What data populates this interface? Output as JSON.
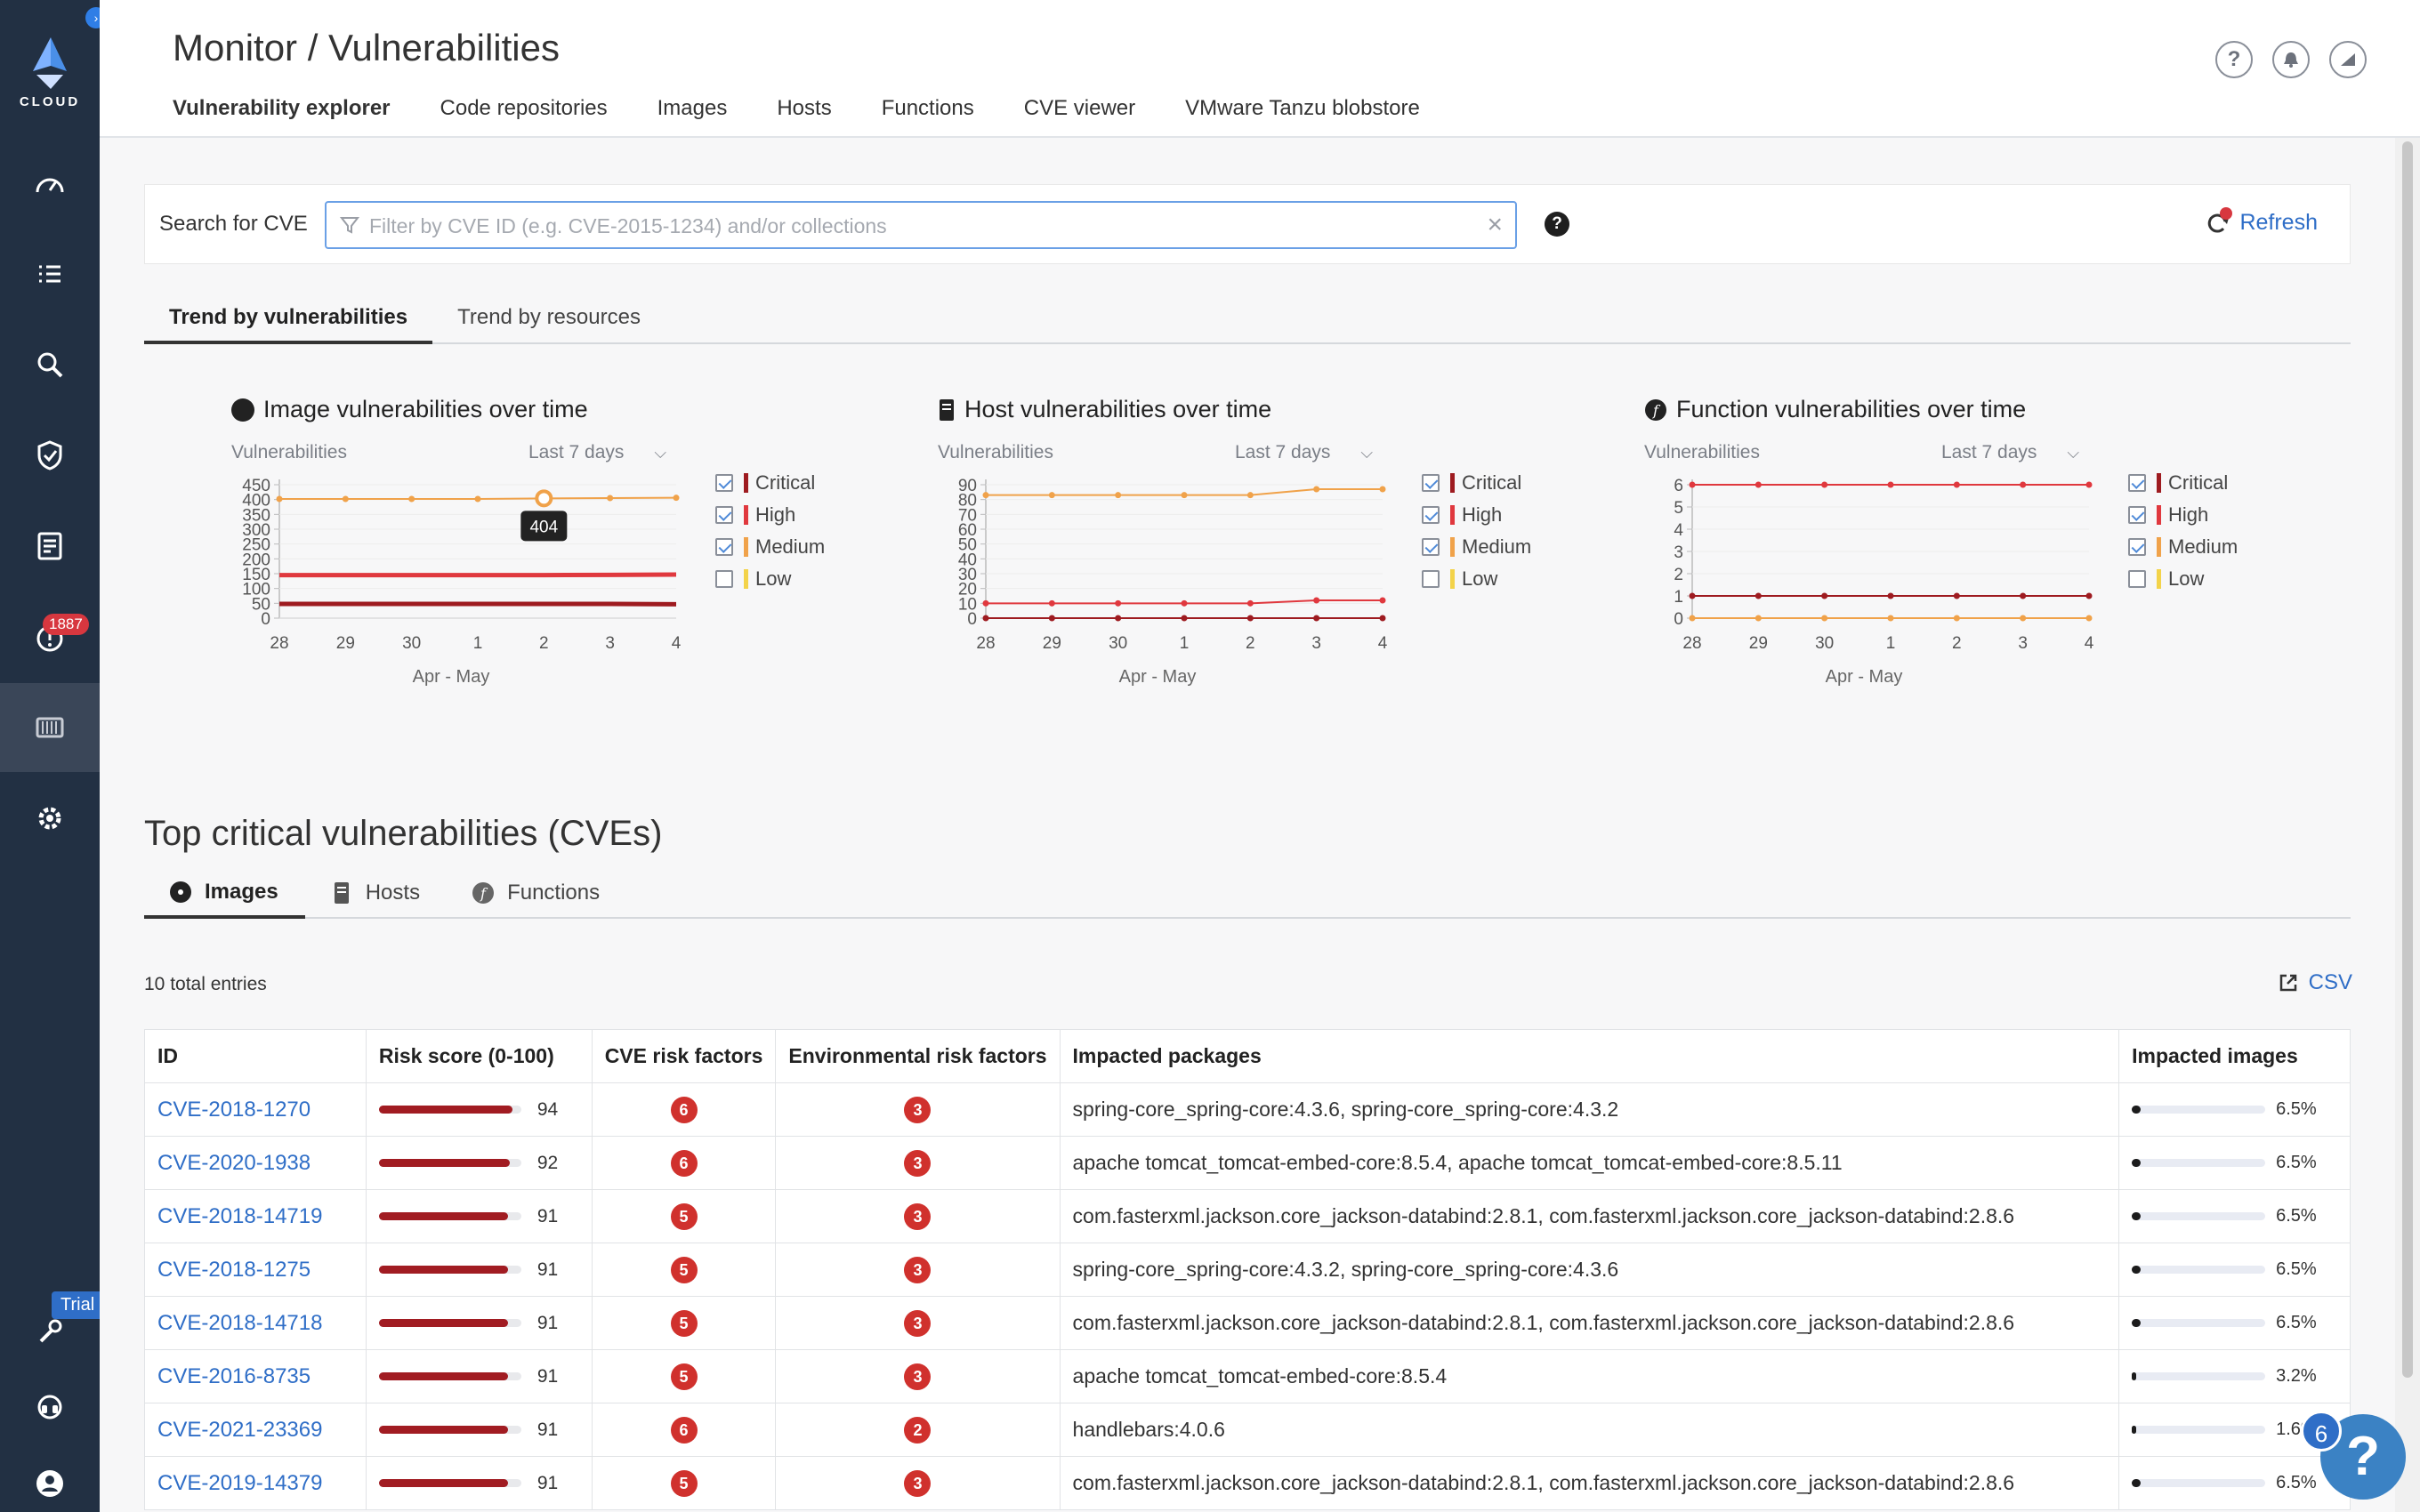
{
  "sidebar": {
    "logo_text": "CLOUD",
    "alerts_badge": "1887",
    "trial_badge": "Trial",
    "items": [
      "dashboard",
      "tasks",
      "search",
      "shield",
      "reports",
      "alerts",
      "containers",
      "settings",
      "tools",
      "support",
      "user"
    ]
  },
  "header": {
    "title": "Monitor / Vulnerabilities",
    "tabs": [
      {
        "label": "Vulnerability explorer",
        "active": true
      },
      {
        "label": "Code repositories"
      },
      {
        "label": "Images"
      },
      {
        "label": "Hosts"
      },
      {
        "label": "Functions"
      },
      {
        "label": "CVE viewer"
      },
      {
        "label": "VMware Tanzu blobstore"
      }
    ],
    "icons": [
      "help-icon",
      "bell-icon",
      "profile-icon"
    ],
    "help_glyph": "?"
  },
  "search": {
    "label": "Search for CVE",
    "placeholder": "Filter by CVE ID (e.g. CVE-2015-1234) and/or collections",
    "value": "",
    "refresh_label": "Refresh"
  },
  "trend_tabs": [
    {
      "label": "Trend by vulnerabilities",
      "active": true
    },
    {
      "label": "Trend by resources"
    }
  ],
  "legend": [
    "Critical",
    "High",
    "Medium",
    "Low"
  ],
  "legend_checked": [
    true,
    true,
    true,
    false
  ],
  "colors": {
    "critical": "#9e1b20",
    "high": "#e0383e",
    "medium": "#f0a24a",
    "low": "#f3d34a",
    "accent": "#2f7ee6",
    "sidebar": "#223043"
  },
  "chart_data": [
    {
      "type": "line",
      "title": "Image vulnerabilities over time",
      "ylabel": "Vulnerabilities",
      "range_label": "Last 7 days",
      "xlabel": "Apr - May",
      "x": [
        "28",
        "29",
        "30",
        "1",
        "2",
        "3",
        "4"
      ],
      "yticks": [
        0,
        50,
        100,
        150,
        200,
        250,
        300,
        350,
        400,
        450
      ],
      "ylim": [
        0,
        450
      ],
      "series": [
        {
          "name": "Critical",
          "values": [
            48,
            48,
            48,
            48,
            48,
            48,
            47
          ]
        },
        {
          "name": "High",
          "values": [
            145,
            145,
            145,
            145,
            145,
            146,
            147
          ]
        },
        {
          "name": "Medium",
          "values": [
            402,
            402,
            402,
            402,
            404,
            405,
            406
          ]
        }
      ],
      "tooltip": {
        "index": 4,
        "value": "404"
      }
    },
    {
      "type": "line",
      "title": "Host vulnerabilities over time",
      "ylabel": "Vulnerabilities",
      "range_label": "Last 7 days",
      "xlabel": "Apr - May",
      "x": [
        "28",
        "29",
        "30",
        "1",
        "2",
        "3",
        "4"
      ],
      "yticks": [
        0,
        10,
        20,
        30,
        40,
        50,
        60,
        70,
        80,
        90
      ],
      "ylim": [
        0,
        90
      ],
      "series": [
        {
          "name": "Critical",
          "values": [
            0,
            0,
            0,
            0,
            0,
            0,
            0
          ]
        },
        {
          "name": "High",
          "values": [
            10,
            10,
            10,
            10,
            10,
            12,
            12
          ]
        },
        {
          "name": "Medium",
          "values": [
            83,
            83,
            83,
            83,
            83,
            87,
            87
          ]
        }
      ]
    },
    {
      "type": "line",
      "title": "Function vulnerabilities over time",
      "ylabel": "Vulnerabilities",
      "range_label": "Last 7 days",
      "xlabel": "Apr - May",
      "x": [
        "28",
        "29",
        "30",
        "1",
        "2",
        "3",
        "4"
      ],
      "yticks": [
        0,
        1,
        2,
        3,
        4,
        5,
        6
      ],
      "ylim": [
        0,
        6
      ],
      "series": [
        {
          "name": "Critical",
          "values": [
            1,
            1,
            1,
            1,
            1,
            1,
            1
          ]
        },
        {
          "name": "High",
          "values": [
            6,
            6,
            6,
            6,
            6,
            6,
            6
          ]
        },
        {
          "name": "Medium",
          "values": [
            0,
            0,
            0,
            0,
            0,
            0,
            0
          ]
        }
      ]
    }
  ],
  "top": {
    "title": "Top critical vulnerabilities (CVEs)",
    "tabs": [
      {
        "label": "Images",
        "active": true
      },
      {
        "label": "Hosts"
      },
      {
        "label": "Functions"
      }
    ],
    "total_entries": "10 total entries",
    "csv_label": "CSV",
    "columns": [
      "ID",
      "Risk score (0-100)",
      "CVE risk factors",
      "Environmental risk factors",
      "Impacted packages",
      "Impacted images"
    ],
    "rows": [
      {
        "id": "CVE-2018-1270",
        "risk": 94,
        "cve_factors": "6",
        "env_factors": "3",
        "packages": "spring-core_spring-core:4.3.6, spring-core_spring-core:4.3.2",
        "impacted": "6.5%",
        "impacted_pct": 6.5
      },
      {
        "id": "CVE-2020-1938",
        "risk": 92,
        "cve_factors": "6",
        "env_factors": "3",
        "packages": "apache tomcat_tomcat-embed-core:8.5.4, apache tomcat_tomcat-embed-core:8.5.11",
        "impacted": "6.5%",
        "impacted_pct": 6.5
      },
      {
        "id": "CVE-2018-14719",
        "risk": 91,
        "cve_factors": "5",
        "env_factors": "3",
        "packages": "com.fasterxml.jackson.core_jackson-databind:2.8.1, com.fasterxml.jackson.core_jackson-databind:2.8.6",
        "impacted": "6.5%",
        "impacted_pct": 6.5
      },
      {
        "id": "CVE-2018-1275",
        "risk": 91,
        "cve_factors": "5",
        "env_factors": "3",
        "packages": "spring-core_spring-core:4.3.2, spring-core_spring-core:4.3.6",
        "impacted": "6.5%",
        "impacted_pct": 6.5
      },
      {
        "id": "CVE-2018-14718",
        "risk": 91,
        "cve_factors": "5",
        "env_factors": "3",
        "packages": "com.fasterxml.jackson.core_jackson-databind:2.8.1, com.fasterxml.jackson.core_jackson-databind:2.8.6",
        "impacted": "6.5%",
        "impacted_pct": 6.5
      },
      {
        "id": "CVE-2016-8735",
        "risk": 91,
        "cve_factors": "5",
        "env_factors": "3",
        "packages": "apache tomcat_tomcat-embed-core:8.5.4",
        "impacted": "3.2%",
        "impacted_pct": 3.2
      },
      {
        "id": "CVE-2021-23369",
        "risk": 91,
        "cve_factors": "6",
        "env_factors": "2",
        "packages": "handlebars:4.0.6",
        "impacted": "1.6%",
        "impacted_pct": 1.6
      },
      {
        "id": "CVE-2019-14379",
        "risk": 91,
        "cve_factors": "5",
        "env_factors": "3",
        "packages": "com.fasterxml.jackson.core_jackson-databind:2.8.1, com.fasterxml.jackson.core_jackson-databind:2.8.6",
        "impacted": "6.5%",
        "impacted_pct": 6.5
      }
    ]
  },
  "help_fab": {
    "glyph": "?",
    "count": "6"
  }
}
